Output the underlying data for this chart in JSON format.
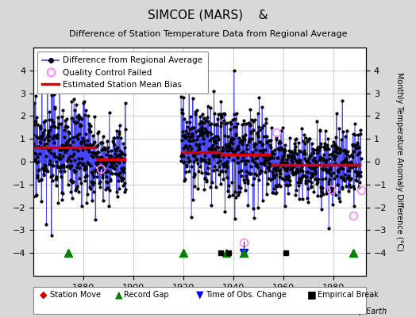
{
  "title": "SIMCOE (MARS)    &",
  "subtitle": "Difference of Station Temperature Data from Regional Average",
  "ylabel": "Monthly Temperature Anomaly Difference (°C)",
  "ylim": [
    -5,
    5
  ],
  "yticks": [
    -4,
    -3,
    -2,
    -1,
    0,
    1,
    2,
    3,
    4
  ],
  "xlim": [
    1860,
    1993
  ],
  "xticks": [
    1880,
    1900,
    1920,
    1940,
    1960,
    1980
  ],
  "bg_color": "#d8d8d8",
  "plot_bg_color": "#ffffff",
  "line_color": "#4444ff",
  "dot_color": "#000000",
  "bias_color": "#dd0000",
  "qc_color": "#ff88ff",
  "grid_color": "#bbbbbb",
  "segments": [
    {
      "x_start": 1860,
      "x_end": 1885,
      "bias": 0.62
    },
    {
      "x_start": 1885,
      "x_end": 1897,
      "bias": 0.1
    },
    {
      "x_start": 1919,
      "x_end": 1935,
      "bias": 0.42
    },
    {
      "x_start": 1935,
      "x_end": 1955,
      "bias": 0.3
    },
    {
      "x_start": 1955,
      "x_end": 1991,
      "bias": -0.15
    }
  ],
  "record_gaps": [
    1874,
    1920,
    1937,
    1944,
    1988
  ],
  "empirical_breaks": [
    1935,
    1938,
    1961
  ],
  "time_of_obs": [
    1944
  ],
  "qc_failed_x": [
    1887,
    1944,
    1957,
    1979,
    1988,
    1991
  ],
  "qc_failed_y": [
    -0.3,
    -3.55,
    1.3,
    -1.2,
    -2.35,
    -1.25
  ],
  "station_moves": []
}
